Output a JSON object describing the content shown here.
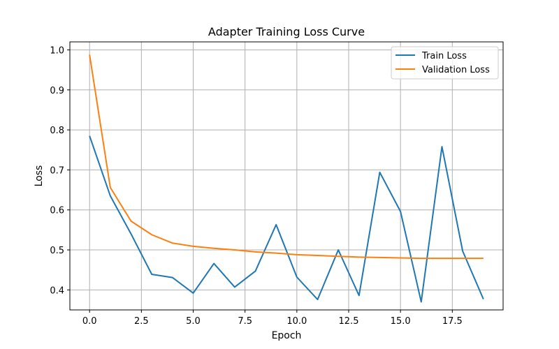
{
  "chart_data": {
    "type": "line",
    "title": "Adapter Training Loss Curve",
    "xlabel": "Epoch",
    "ylabel": "Loss",
    "xlim": [
      -0.95,
      19.95
    ],
    "ylim": [
      0.35,
      1.02
    ],
    "xticks": [
      0.0,
      2.5,
      5.0,
      7.5,
      10.0,
      12.5,
      15.0,
      17.5
    ],
    "xtick_labels": [
      "0.0",
      "2.5",
      "5.0",
      "7.5",
      "10.0",
      "12.5",
      "15.0",
      "17.5"
    ],
    "yticks": [
      0.4,
      0.5,
      0.6,
      0.7,
      0.8,
      0.9,
      1.0
    ],
    "ytick_labels": [
      "0.4",
      "0.5",
      "0.6",
      "0.7",
      "0.8",
      "0.9",
      "1.0"
    ],
    "grid": true,
    "legend_position": "top-right",
    "x": [
      0,
      1,
      2,
      3,
      4,
      5,
      6,
      7,
      8,
      9,
      10,
      11,
      12,
      13,
      14,
      15,
      16,
      17,
      18,
      19
    ],
    "series": [
      {
        "name": "Train Loss",
        "color": "#1f77b4",
        "values": [
          0.785,
          0.635,
          0.54,
          0.439,
          0.431,
          0.392,
          0.466,
          0.407,
          0.447,
          0.563,
          0.432,
          0.376,
          0.5,
          0.386,
          0.694,
          0.596,
          0.37,
          0.758,
          0.497,
          0.377
        ]
      },
      {
        "name": "Validation Loss",
        "color": "#ff7f0e",
        "values": [
          0.988,
          0.656,
          0.572,
          0.538,
          0.517,
          0.509,
          0.504,
          0.5,
          0.495,
          0.492,
          0.488,
          0.486,
          0.484,
          0.482,
          0.481,
          0.48,
          0.479,
          0.479,
          0.479,
          0.479
        ]
      }
    ]
  }
}
